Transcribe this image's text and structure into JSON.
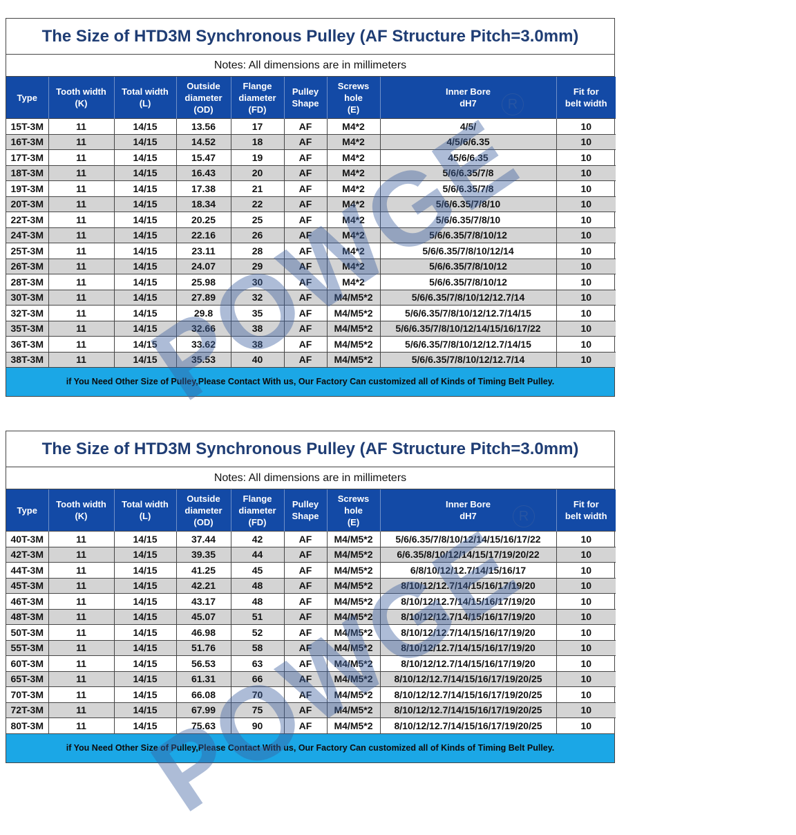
{
  "block1": {
    "title": "The Size of HTD3M Synchronous Pulley (AF Structure Pitch=3.0mm)",
    "notes": "Notes: All dimensions are in millimeters",
    "headers": [
      [
        "Type"
      ],
      [
        "Tooth width",
        "(K)"
      ],
      [
        "Total width",
        "(L)"
      ],
      [
        "Outside",
        "diameter",
        "(OD)"
      ],
      [
        "Flange",
        "diameter",
        "(FD)"
      ],
      [
        "Pulley",
        "Shape"
      ],
      [
        "Screws",
        "hole",
        "(E)"
      ],
      [
        "Inner Bore",
        "dH7"
      ],
      [
        "Fit for",
        "belt width"
      ]
    ],
    "rows": [
      [
        "15T-3M",
        "11",
        "14/15",
        "13.56",
        "17",
        "AF",
        "M4*2",
        "4/5/",
        "10"
      ],
      [
        "16T-3M",
        "11",
        "14/15",
        "14.52",
        "18",
        "AF",
        "M4*2",
        "4/5/6/6.35",
        "10"
      ],
      [
        "17T-3M",
        "11",
        "14/15",
        "15.47",
        "19",
        "AF",
        "M4*2",
        "45/6/6.35",
        "10"
      ],
      [
        "18T-3M",
        "11",
        "14/15",
        "16.43",
        "20",
        "AF",
        "M4*2",
        "5/6/6.35/7/8",
        "10"
      ],
      [
        "19T-3M",
        "11",
        "14/15",
        "17.38",
        "21",
        "AF",
        "M4*2",
        "5/6/6.35/7/8",
        "10"
      ],
      [
        "20T-3M",
        "11",
        "14/15",
        "18.34",
        "22",
        "AF",
        "M4*2",
        "5/6/6.35/7/8/10",
        "10"
      ],
      [
        "22T-3M",
        "11",
        "14/15",
        "20.25",
        "25",
        "AF",
        "M4*2",
        "5/6/6.35/7/8/10",
        "10"
      ],
      [
        "24T-3M",
        "11",
        "14/15",
        "22.16",
        "26",
        "AF",
        "M4*2",
        "5/6/6.35/7/8/10/12",
        "10"
      ],
      [
        "25T-3M",
        "11",
        "14/15",
        "23.11",
        "28",
        "AF",
        "M4*2",
        "5/6/6.35/7/8/10/12/14",
        "10"
      ],
      [
        "26T-3M",
        "11",
        "14/15",
        "24.07",
        "29",
        "AF",
        "M4*2",
        "5/6/6.35/7/8/10/12",
        "10"
      ],
      [
        "28T-3M",
        "11",
        "14/15",
        "25.98",
        "30",
        "AF",
        "M4*2",
        "5/6/6.35/7/8/10/12",
        "10"
      ],
      [
        "30T-3M",
        "11",
        "14/15",
        "27.89",
        "32",
        "AF",
        "M4/M5*2",
        "5/6/6.35/7/8/10/12/12.7/14",
        "10"
      ],
      [
        "32T-3M",
        "11",
        "14/15",
        "29.8",
        "35",
        "AF",
        "M4/M5*2",
        "5/6/6.35/7/8/10/12/12.7/14/15",
        "10"
      ],
      [
        "35T-3M",
        "11",
        "14/15",
        "32.66",
        "38",
        "AF",
        "M4/M5*2",
        "5/6/6.35/7/8/10/12/14/15/16/17/22",
        "10"
      ],
      [
        "36T-3M",
        "11",
        "14/15",
        "33.62",
        "38",
        "AF",
        "M4/M5*2",
        "5/6/6.35/7/8/10/12/12.7/14/15",
        "10"
      ],
      [
        "38T-3M",
        "11",
        "14/15",
        "35.53",
        "40",
        "AF",
        "M4/M5*2",
        "5/6/6.35/7/8/10/12/12.7/14",
        "10"
      ]
    ],
    "footer": "if You Need Other Size of Pulley,Please Contact With us, Our Factory Can customized all of Kinds of Timing Belt Pulley."
  },
  "block2": {
    "title": "The Size of HTD3M Synchronous Pulley (AF Structure Pitch=3.0mm)",
    "notes": "Notes: All dimensions are in millimeters",
    "headers": [
      [
        "Type"
      ],
      [
        "Tooth width",
        "(K)"
      ],
      [
        "Total width",
        "(L)"
      ],
      [
        "Outside",
        "diameter",
        "(OD)"
      ],
      [
        "Flange",
        "diameter",
        "(FD)"
      ],
      [
        "Pulley",
        "Shape"
      ],
      [
        "Screws",
        "hole",
        "(E)"
      ],
      [
        "Inner Bore",
        "dH7"
      ],
      [
        "Fit for",
        "belt width"
      ]
    ],
    "rows": [
      [
        "40T-3M",
        "11",
        "14/15",
        "37.44",
        "42",
        "AF",
        "M4/M5*2",
        "5/6/6.35/7/8/10/12/14/15/16/17/22",
        "10"
      ],
      [
        "42T-3M",
        "11",
        "14/15",
        "39.35",
        "44",
        "AF",
        "M4/M5*2",
        "6/6.35/8/10/12/14/15/17/19/20/22",
        "10"
      ],
      [
        "44T-3M",
        "11",
        "14/15",
        "41.25",
        "45",
        "AF",
        "M4/M5*2",
        "6/8/10/12/12.7/14/15/16/17",
        "10"
      ],
      [
        "45T-3M",
        "11",
        "14/15",
        "42.21",
        "48",
        "AF",
        "M4/M5*2",
        "8/10/12/12.7/14/15/16/17/19/20",
        "10"
      ],
      [
        "46T-3M",
        "11",
        "14/15",
        "43.17",
        "48",
        "AF",
        "M4/M5*2",
        "8/10/12/12.7/14/15/16/17/19/20",
        "10"
      ],
      [
        "48T-3M",
        "11",
        "14/15",
        "45.07",
        "51",
        "AF",
        "M4/M5*2",
        "8/10/12/12.7/14/15/16/17/19/20",
        "10"
      ],
      [
        "50T-3M",
        "11",
        "14/15",
        "46.98",
        "52",
        "AF",
        "M4/M5*2",
        "8/10/12/12.7/14/15/16/17/19/20",
        "10"
      ],
      [
        "55T-3M",
        "11",
        "14/15",
        "51.76",
        "58",
        "AF",
        "M4/M5*2",
        "8/10/12/12.7/14/15/16/17/19/20",
        "10"
      ],
      [
        "60T-3M",
        "11",
        "14/15",
        "56.53",
        "63",
        "AF",
        "M4/M5*2",
        "8/10/12/12.7/14/15/16/17/19/20",
        "10"
      ],
      [
        "65T-3M",
        "11",
        "14/15",
        "61.31",
        "66",
        "AF",
        "M4/M5*2",
        "8/10/12/12.7/14/15/16/17/19/20/25",
        "10"
      ],
      [
        "70T-3M",
        "11",
        "14/15",
        "66.08",
        "70",
        "AF",
        "M4/M5*2",
        "8/10/12/12.7/14/15/16/17/19/20/25",
        "10"
      ],
      [
        "72T-3M",
        "11",
        "14/15",
        "67.99",
        "75",
        "AF",
        "M4/M5*2",
        "8/10/12/12.7/14/15/16/17/19/20/25",
        "10"
      ],
      [
        "80T-3M",
        "11",
        "14/15",
        "75.63",
        "90",
        "AF",
        "M4/M5*2",
        "8/10/12/12.7/14/15/16/17/19/20/25",
        "10"
      ]
    ],
    "footer": "if You Need Other Size of Pulley,Please Contact With us, Our Factory Can customized all of Kinds of Timing Belt Pulley."
  },
  "watermark": {
    "text": "POWGE",
    "mark": "R"
  },
  "colors": {
    "header_bg": "#134aa6",
    "title_text": "#1f3d74",
    "footer_bg": "#1ba7e6",
    "zebra_row": "#d4d4d4"
  }
}
